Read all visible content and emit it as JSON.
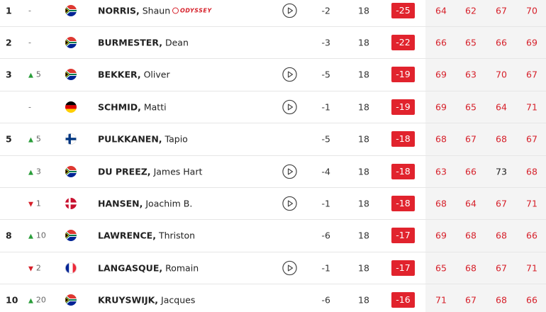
{
  "leaderboard": {
    "sponsor": "ODYSSEY",
    "rows": [
      {
        "pos": "1",
        "move": "-",
        "last": "NORRIS,",
        "first": "Shaun",
        "today": -2,
        "thru": 18,
        "total": -25,
        "rounds": [
          64,
          62,
          67,
          70
        ]
      },
      {
        "pos": "2",
        "move": "-",
        "last": "BURMESTER,",
        "first": "Dean",
        "today": -3,
        "thru": 18,
        "total": -22,
        "rounds": [
          66,
          65,
          66,
          69
        ]
      },
      {
        "pos": "3",
        "move": "5",
        "last": "BEKKER,",
        "first": "Oliver",
        "today": -5,
        "thru": 18,
        "total": -19,
        "rounds": [
          69,
          63,
          70,
          67
        ]
      },
      {
        "move": "-",
        "last": "SCHMID,",
        "first": "Matti",
        "today": -1,
        "thru": 18,
        "total": -19,
        "rounds": [
          69,
          65,
          64,
          71
        ]
      },
      {
        "pos": "5",
        "move": "5",
        "last": "PULKKANEN,",
        "first": "Tapio",
        "today": -5,
        "thru": 18,
        "total": -18,
        "rounds": [
          68,
          67,
          68,
          67
        ]
      },
      {
        "move": "3",
        "last": "DU PREEZ,",
        "first": "James Hart",
        "today": -4,
        "thru": 18,
        "total": -18,
        "rounds": [
          63,
          66,
          73,
          68
        ]
      },
      {
        "move": "1",
        "last": "HANSEN,",
        "first": "Joachim B.",
        "today": -1,
        "thru": 18,
        "total": -18,
        "rounds": [
          68,
          64,
          67,
          71
        ]
      },
      {
        "pos": "8",
        "move": "10",
        "last": "LAWRENCE,",
        "first": "Thriston",
        "today": -6,
        "thru": 18,
        "total": -17,
        "rounds": [
          69,
          68,
          68,
          66
        ]
      },
      {
        "move": "2",
        "last": "LANGASQUE,",
        "first": "Romain",
        "today": -1,
        "thru": 18,
        "total": -17,
        "rounds": [
          65,
          68,
          67,
          71
        ]
      },
      {
        "pos": "10",
        "move": "20",
        "last": "KRUYSWIJK,",
        "first": "Jacques",
        "today": -6,
        "thru": 18,
        "total": -16,
        "rounds": [
          71,
          67,
          68,
          66
        ]
      }
    ]
  }
}
